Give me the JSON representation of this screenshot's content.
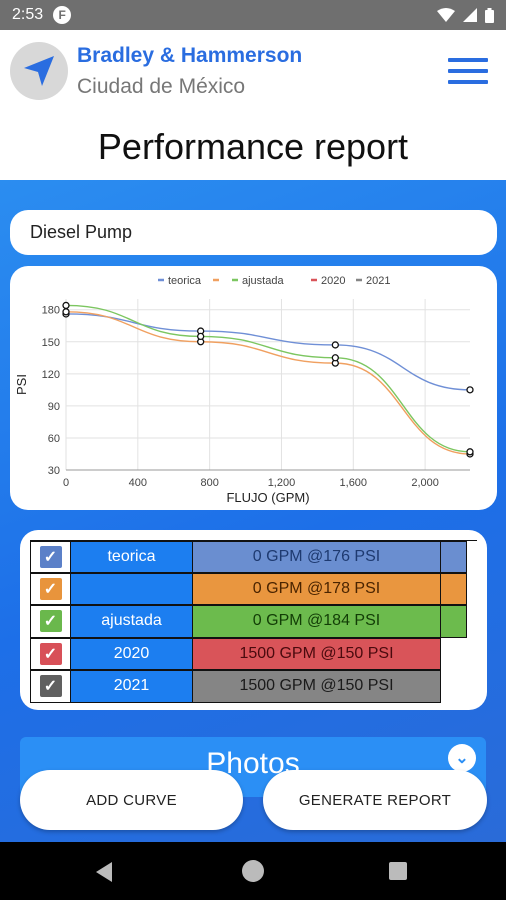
{
  "status_bar": {
    "time": "2:53",
    "app_indicator": "F"
  },
  "header": {
    "brand": "Bradley & Hammerson",
    "city": "Ciudad de México",
    "title": "Performance report"
  },
  "pump": {
    "value": "Diesel Pump"
  },
  "chart_data": {
    "type": "line",
    "legend": [
      "teorica",
      "",
      "ajustada",
      "2020",
      "2021"
    ],
    "legend_placement": "top",
    "xlabel": "FLUJO  (GPM)",
    "ylabel": "PSI",
    "xlim": [
      0,
      2250
    ],
    "ylim": [
      30,
      190
    ],
    "x_ticks": [
      "0",
      "400",
      "800",
      "1,200",
      "1,600",
      "2,000"
    ],
    "y_ticks": [
      "30",
      "60",
      "90",
      "120",
      "150",
      "180"
    ],
    "grid": true,
    "series": [
      {
        "name": "teorica",
        "color": "#6f8fd6",
        "points": [
          [
            0,
            176
          ],
          [
            750,
            160
          ],
          [
            1500,
            147
          ],
          [
            2250,
            105
          ]
        ]
      },
      {
        "name": "",
        "color": "#f0a060",
        "points": [
          [
            0,
            178
          ],
          [
            750,
            150
          ],
          [
            1500,
            130
          ],
          [
            2250,
            45
          ]
        ]
      },
      {
        "name": "ajustada",
        "color": "#7cc660",
        "points": [
          [
            0,
            184
          ],
          [
            750,
            155
          ],
          [
            1500,
            135
          ],
          [
            2250,
            47
          ]
        ]
      }
    ]
  },
  "curves": [
    {
      "name": "teorica",
      "value": "0 GPM @176 PSI",
      "check_color": "#5b80c8",
      "value_bg": "#6a8ed0",
      "value_color": "#1e3a70",
      "extra": true
    },
    {
      "name": "",
      "value": "0 GPM @178 PSI",
      "check_color": "#e8943c",
      "value_bg": "#e9963f",
      "value_color": "#4a2400",
      "extra": true
    },
    {
      "name": "ajustada",
      "value": "0 GPM @184 PSI",
      "check_color": "#6ab84c",
      "value_bg": "#6cbb4d",
      "value_color": "#123d06",
      "extra": true
    },
    {
      "name": "2020",
      "value": "1500 GPM @150 PSI",
      "check_color": "#d85058",
      "value_bg": "#d95459",
      "value_color": "#4a0a0e",
      "extra": false
    },
    {
      "name": "2021",
      "value": "1500 GPM @150 PSI",
      "check_color": "#606060",
      "value_bg": "#858585",
      "value_color": "#1b1b1b",
      "extra": false
    }
  ],
  "photos": {
    "label": "Photos"
  },
  "buttons": {
    "add_curve": "ADD CURVE",
    "generate_report": "GENERATE REPORT"
  }
}
